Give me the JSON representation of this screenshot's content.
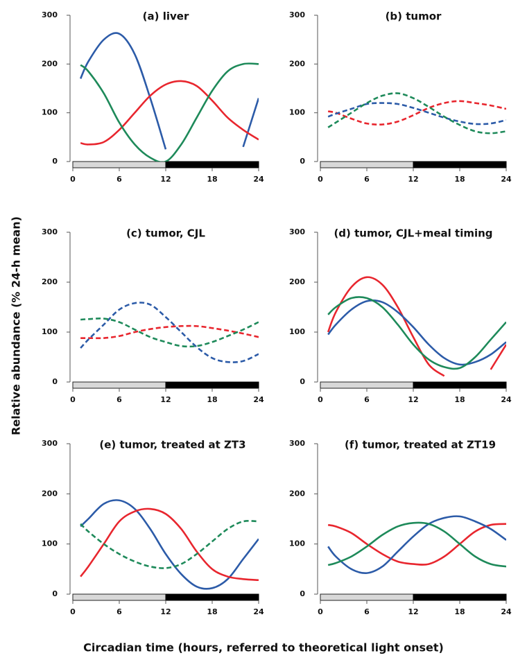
{
  "ylabel": "Relative abundance (% 24-h mean)",
  "xlabel": "Circadian time (hours, referred to theoretical light onset)",
  "chart_data": [
    {
      "type": "line",
      "title": "(a) liver",
      "x": [
        1,
        2,
        4,
        6,
        8,
        10,
        12,
        14,
        16,
        18,
        20,
        22,
        24
      ],
      "xlim": [
        0,
        24
      ],
      "ylim": [
        0,
        300
      ],
      "xticks": [
        0,
        6,
        12,
        18,
        24
      ],
      "yticks": [
        0,
        100,
        200,
        300
      ],
      "dark_period": [
        12,
        24
      ],
      "series": [
        {
          "color": "#2c5ba8",
          "dash": false,
          "values": [
            170,
            205,
            250,
            262,
            220,
            130,
            25,
            null,
            null,
            null,
            null,
            30,
            130
          ]
        },
        {
          "color": "#e8262e",
          "dash": false,
          "values": [
            38,
            35,
            40,
            65,
            100,
            135,
            158,
            165,
            155,
            125,
            90,
            65,
            45
          ]
        },
        {
          "color": "#1e8a5a",
          "dash": false,
          "values": [
            198,
            185,
            140,
            80,
            35,
            8,
            0,
            35,
            90,
            145,
            185,
            200,
            200
          ]
        }
      ]
    },
    {
      "type": "line",
      "title": "(b) tumor",
      "x": [
        1,
        2,
        4,
        6,
        8,
        10,
        12,
        14,
        16,
        18,
        20,
        22,
        24
      ],
      "xlim": [
        0,
        24
      ],
      "ylim": [
        0,
        300
      ],
      "xticks": [
        0,
        6,
        12,
        18,
        24
      ],
      "yticks": [
        0,
        100,
        200,
        300
      ],
      "dark_period": [
        12,
        24
      ],
      "series": [
        {
          "color": "#e8262e",
          "dash": true,
          "values": [
            103,
            100,
            88,
            78,
            76,
            82,
            95,
            110,
            120,
            124,
            120,
            115,
            108
          ]
        },
        {
          "color": "#2c5ba8",
          "dash": true,
          "values": [
            92,
            98,
            108,
            118,
            120,
            118,
            110,
            100,
            90,
            82,
            77,
            78,
            85
          ]
        },
        {
          "color": "#1e8a5a",
          "dash": true,
          "values": [
            70,
            80,
            100,
            120,
            135,
            140,
            130,
            112,
            92,
            75,
            62,
            58,
            62
          ]
        }
      ]
    },
    {
      "type": "line",
      "title": "(c) tumor, CJL",
      "x": [
        1,
        2,
        4,
        6,
        8,
        10,
        12,
        14,
        16,
        18,
        20,
        22,
        24
      ],
      "xlim": [
        0,
        24
      ],
      "ylim": [
        0,
        300
      ],
      "xticks": [
        0,
        6,
        12,
        18,
        24
      ],
      "yticks": [
        0,
        100,
        200,
        300
      ],
      "dark_period": [
        12,
        24
      ],
      "series": [
        {
          "color": "#e8262e",
          "dash": true,
          "values": [
            88,
            88,
            88,
            92,
            100,
            106,
            110,
            112,
            112,
            108,
            103,
            97,
            90
          ]
        },
        {
          "color": "#2c5ba8",
          "dash": true,
          "values": [
            68,
            85,
            115,
            145,
            158,
            155,
            130,
            100,
            70,
            48,
            40,
            42,
            56
          ]
        },
        {
          "color": "#1e8a5a",
          "dash": true,
          "values": [
            125,
            126,
            127,
            120,
            105,
            90,
            80,
            72,
            72,
            80,
            92,
            105,
            120
          ]
        }
      ]
    },
    {
      "type": "line",
      "title": "(d) tumor, CJL+meal timing",
      "x": [
        1,
        2,
        4,
        6,
        8,
        10,
        12,
        14,
        16,
        18,
        20,
        22,
        24
      ],
      "xlim": [
        0,
        24
      ],
      "ylim": [
        0,
        300
      ],
      "xticks": [
        0,
        6,
        12,
        18,
        24
      ],
      "yticks": [
        0,
        100,
        200,
        300
      ],
      "dark_period": [
        12,
        24
      ],
      "series": [
        {
          "color": "#e8262e",
          "dash": false,
          "values": [
            100,
            140,
            190,
            210,
            195,
            150,
            90,
            35,
            12,
            null,
            null,
            25,
            75
          ]
        },
        {
          "color": "#2c5ba8",
          "dash": false,
          "values": [
            95,
            115,
            145,
            162,
            160,
            140,
            110,
            75,
            48,
            35,
            40,
            55,
            80
          ]
        },
        {
          "color": "#1e8a5a",
          "dash": false,
          "values": [
            135,
            150,
            168,
            168,
            150,
            115,
            75,
            45,
            30,
            28,
            50,
            85,
            120
          ]
        }
      ]
    },
    {
      "type": "line",
      "title": "(e) tumor, treated at ZT3",
      "x": [
        1,
        2,
        4,
        6,
        8,
        10,
        12,
        14,
        16,
        18,
        20,
        22,
        24
      ],
      "xlim": [
        0,
        24
      ],
      "ylim": [
        0,
        300
      ],
      "xticks": [
        0,
        6,
        12,
        18,
        24
      ],
      "yticks": [
        0,
        100,
        200,
        300
      ],
      "dark_period": [
        12,
        24
      ],
      "series": [
        {
          "color": "#2c5ba8",
          "dash": false,
          "values": [
            135,
            150,
            180,
            187,
            170,
            130,
            80,
            40,
            15,
            12,
            30,
            70,
            110
          ]
        },
        {
          "color": "#e8262e",
          "dash": false,
          "values": [
            35,
            55,
            100,
            145,
            165,
            170,
            160,
            130,
            85,
            50,
            35,
            30,
            28
          ]
        },
        {
          "color": "#1e8a5a",
          "dash": true,
          "values": [
            140,
            125,
            100,
            80,
            65,
            55,
            52,
            60,
            80,
            105,
            130,
            145,
            145
          ]
        }
      ]
    },
    {
      "type": "line",
      "title": "(f) tumor, treated at ZT19",
      "x": [
        1,
        2,
        4,
        6,
        8,
        10,
        12,
        14,
        16,
        18,
        20,
        22,
        24
      ],
      "xlim": [
        0,
        24
      ],
      "ylim": [
        0,
        300
      ],
      "xticks": [
        0,
        6,
        12,
        18,
        24
      ],
      "yticks": [
        0,
        100,
        200,
        300
      ],
      "dark_period": [
        12,
        24
      ],
      "series": [
        {
          "color": "#e8262e",
          "dash": false,
          "values": [
            138,
            135,
            122,
            100,
            80,
            65,
            60,
            60,
            75,
            100,
            125,
            138,
            140
          ]
        },
        {
          "color": "#2c5ba8",
          "dash": false,
          "values": [
            95,
            75,
            50,
            42,
            55,
            85,
            115,
            140,
            152,
            155,
            145,
            130,
            108
          ]
        },
        {
          "color": "#1e8a5a",
          "dash": false,
          "values": [
            58,
            62,
            75,
            95,
            118,
            135,
            142,
            140,
            125,
            100,
            75,
            60,
            55
          ]
        }
      ]
    }
  ]
}
